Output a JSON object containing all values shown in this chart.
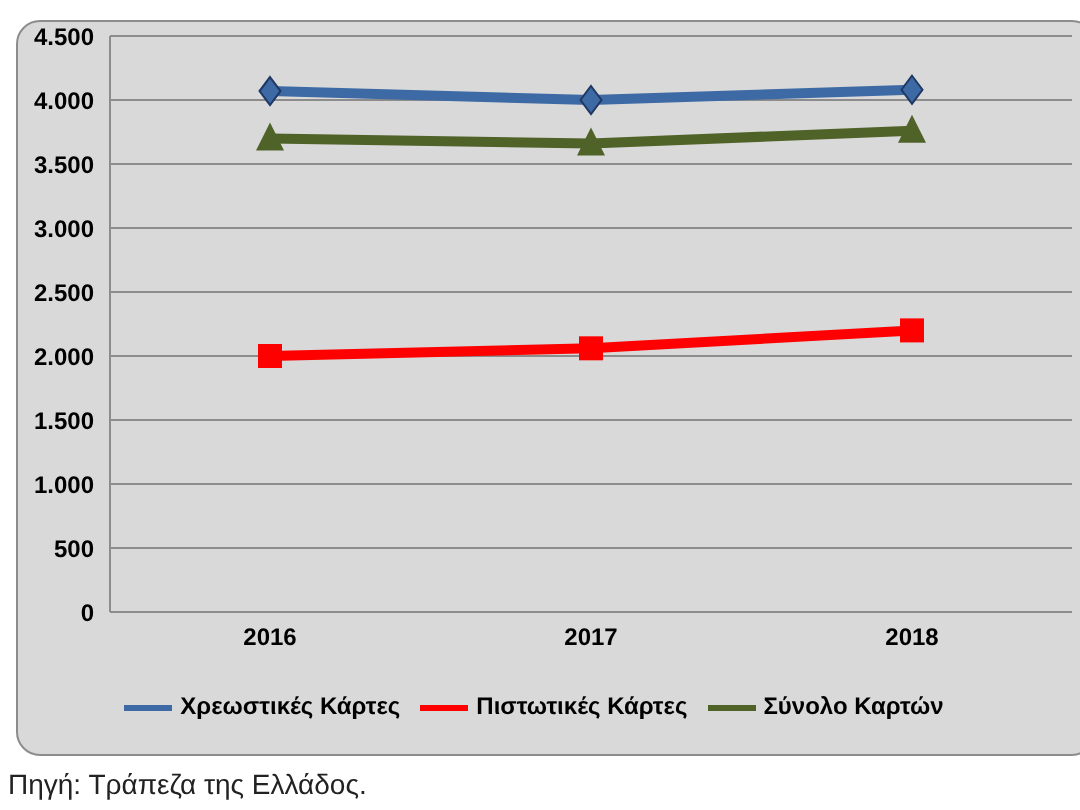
{
  "chart_data": {
    "type": "line",
    "categories": [
      "2016",
      "2017",
      "2018"
    ],
    "series": [
      {
        "name": "Χρεωστικές Κάρτες",
        "color": "#3d6aa5",
        "marker": "diamond",
        "values": [
          4070,
          4000,
          4080
        ]
      },
      {
        "name": "Πιστωτικές Κάρτες",
        "color": "#ff0000",
        "marker": "square",
        "values": [
          2000,
          2060,
          2200
        ]
      },
      {
        "name": "Σύνολο Καρτών",
        "color": "#4f6228",
        "marker": "triangle",
        "values": [
          3700,
          3660,
          3760
        ]
      }
    ],
    "ylim": [
      0,
      4500
    ],
    "yticks": [
      {
        "value": 0,
        "label": "0"
      },
      {
        "value": 500,
        "label": "500"
      },
      {
        "value": 1000,
        "label": "1.000"
      },
      {
        "value": 1500,
        "label": "1.500"
      },
      {
        "value": 2000,
        "label": "2.000"
      },
      {
        "value": 2500,
        "label": "2.500"
      },
      {
        "value": 3000,
        "label": "3.000"
      },
      {
        "value": 3500,
        "label": "3.500"
      },
      {
        "value": 4000,
        "label": "4.000"
      },
      {
        "value": 4500,
        "label": "4.500"
      }
    ],
    "grid": "y",
    "legend": "bottom",
    "line_style": "solid",
    "annotations": [
      "Πηγή: Τράπεζα της Ελλάδος."
    ]
  }
}
